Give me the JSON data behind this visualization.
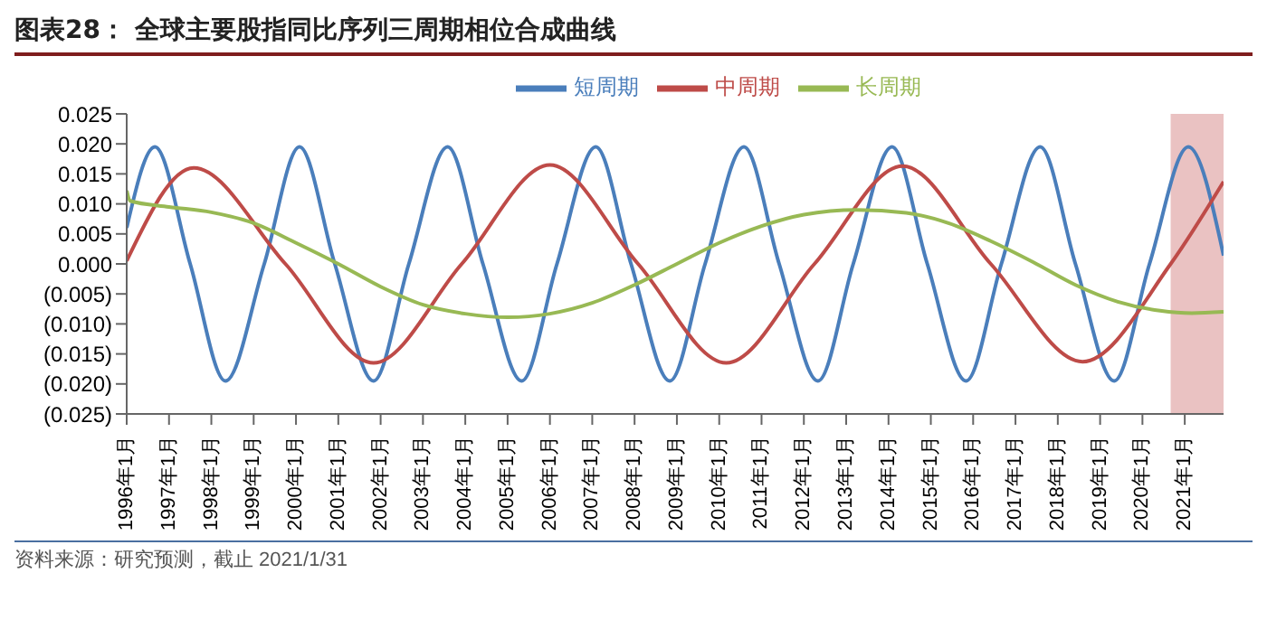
{
  "chart_data": {
    "type": "line",
    "title": "图表28：  全球主要股指同比序列三周期相位合成曲线",
    "annotations": [
      "资料来源：研究预测，截止 2021/1/31"
    ],
    "xlim": [
      "1996-01",
      "2021-12"
    ],
    "xticks": [
      {
        "value": "1996-01",
        "label": "1996年1月"
      },
      {
        "value": "1997-01",
        "label": "1997年1月"
      },
      {
        "value": "1998-01",
        "label": "1998年1月"
      },
      {
        "value": "1999-01",
        "label": "1999年1月"
      },
      {
        "value": "2000-01",
        "label": "2000年1月"
      },
      {
        "value": "2001-01",
        "label": "2001年1月"
      },
      {
        "value": "2002-01",
        "label": "2002年1月"
      },
      {
        "value": "2003-01",
        "label": "2003年1月"
      },
      {
        "value": "2004-01",
        "label": "2004年1月"
      },
      {
        "value": "2005-01",
        "label": "2005年1月"
      },
      {
        "value": "2006-01",
        "label": "2006年1月"
      },
      {
        "value": "2007-01",
        "label": "2007年1月"
      },
      {
        "value": "2008-01",
        "label": "2008年1月"
      },
      {
        "value": "2009-01",
        "label": "2009年1月"
      },
      {
        "value": "2010-01",
        "label": "2010年1月"
      },
      {
        "value": "2011-01",
        "label": "2011年1月"
      },
      {
        "value": "2012-01",
        "label": "2012年1月"
      },
      {
        "value": "2013-01",
        "label": "2013年1月"
      },
      {
        "value": "2014-01",
        "label": "2014年1月"
      },
      {
        "value": "2015-01",
        "label": "2015年1月"
      },
      {
        "value": "2016-01",
        "label": "2016年1月"
      },
      {
        "value": "2017-01",
        "label": "2017年1月"
      },
      {
        "value": "2018-01",
        "label": "2018年1月"
      },
      {
        "value": "2019-01",
        "label": "2019年1月"
      },
      {
        "value": "2020-01",
        "label": "2020年1月"
      },
      {
        "value": "2021-01",
        "label": "2021年1月"
      }
    ],
    "ylim": [
      -0.025,
      0.025
    ],
    "yticks": [
      {
        "value": -0.025,
        "label": "(0.025)"
      },
      {
        "value": -0.02,
        "label": "(0.020)"
      },
      {
        "value": -0.015,
        "label": "(0.015)"
      },
      {
        "value": -0.01,
        "label": "(0.010)"
      },
      {
        "value": -0.005,
        "label": "(0.005)"
      },
      {
        "value": 0,
        "label": "0.000"
      },
      {
        "value": 0.005,
        "label": "0.005"
      },
      {
        "value": 0.01,
        "label": "0.010"
      },
      {
        "value": 0.015,
        "label": "0.015"
      },
      {
        "value": 0.02,
        "label": "0.020"
      },
      {
        "value": 0.025,
        "label": "0.025"
      }
    ],
    "legend": "top",
    "grid": false,
    "marker": "none",
    "line_style": "solid",
    "bands": [
      {
        "axis": "x",
        "from": "2020-09",
        "to": "2021-12",
        "color": "#dc9a9a"
      }
    ],
    "series": [
      {
        "name": "短周期",
        "color": "#4a7ebb",
        "x": [
          "1996-01",
          "1996-09",
          "1997-07",
          "1998-05",
          "1999-04",
          "2000-02",
          "2000-12",
          "2001-11",
          "2002-09",
          "2003-08",
          "2004-06",
          "2005-05",
          "2006-03",
          "2007-02",
          "2007-12",
          "2008-11",
          "2009-09",
          "2010-08",
          "2011-06",
          "2012-05",
          "2013-03",
          "2014-02",
          "2014-12",
          "2015-11",
          "2016-09",
          "2017-08",
          "2018-06",
          "2019-05",
          "2020-03",
          "2021-02",
          "2021-12"
        ],
        "values": [
          0.006,
          0.0195,
          0,
          -0.0195,
          0,
          0.0195,
          0,
          -0.0195,
          0,
          0.0195,
          0,
          -0.0195,
          0,
          0.0195,
          0,
          -0.0195,
          0,
          0.0195,
          0,
          -0.0195,
          0,
          0.0195,
          0,
          -0.0195,
          0,
          0.0195,
          0,
          -0.0195,
          0,
          0.0195,
          0.0014
        ]
      },
      {
        "name": "中周期",
        "color": "#be4b48",
        "x": [
          "1996-01",
          "1997-08",
          "1999-10",
          "2001-11",
          "2003-12",
          "2006-01",
          "2008-02",
          "2010-03",
          "2012-04",
          "2014-05",
          "2016-06",
          "2018-08",
          "2020-09",
          "2021-12"
        ],
        "values": [
          0.0005,
          0.016,
          0,
          -0.0165,
          0,
          0.0165,
          0,
          -0.0165,
          0,
          0.0163,
          0,
          -0.0163,
          0,
          0.0137
        ]
      },
      {
        "name": "长周期",
        "color": "#98b954",
        "x": [
          "1996-01",
          "1996-02",
          "1997-01",
          "1998-01",
          "1999-01",
          "2000-01",
          "2001-01",
          "2002-01",
          "2003-01",
          "2004-01",
          "2005-01",
          "2006-01",
          "2007-01",
          "2008-01",
          "2009-01",
          "2010-01",
          "2011-01",
          "2012-01",
          "2013-04",
          "2014-06",
          "2015-06",
          "2016-06",
          "2017-06",
          "2018-06",
          "2019-06",
          "2020-06",
          "2021-03",
          "2021-12"
        ],
        "values": [
          0.0122,
          0.0105,
          0.0095,
          0.0086,
          0.0068,
          0.0035,
          0,
          -0.0038,
          -0.0068,
          -0.0083,
          -0.0089,
          -0.0083,
          -0.0065,
          -0.0035,
          0,
          0.0035,
          0.0063,
          0.0082,
          0.009,
          0.0085,
          0.0068,
          0.0038,
          0.0003,
          -0.0035,
          -0.0063,
          -0.0078,
          -0.0082,
          -0.008
        ]
      }
    ]
  }
}
